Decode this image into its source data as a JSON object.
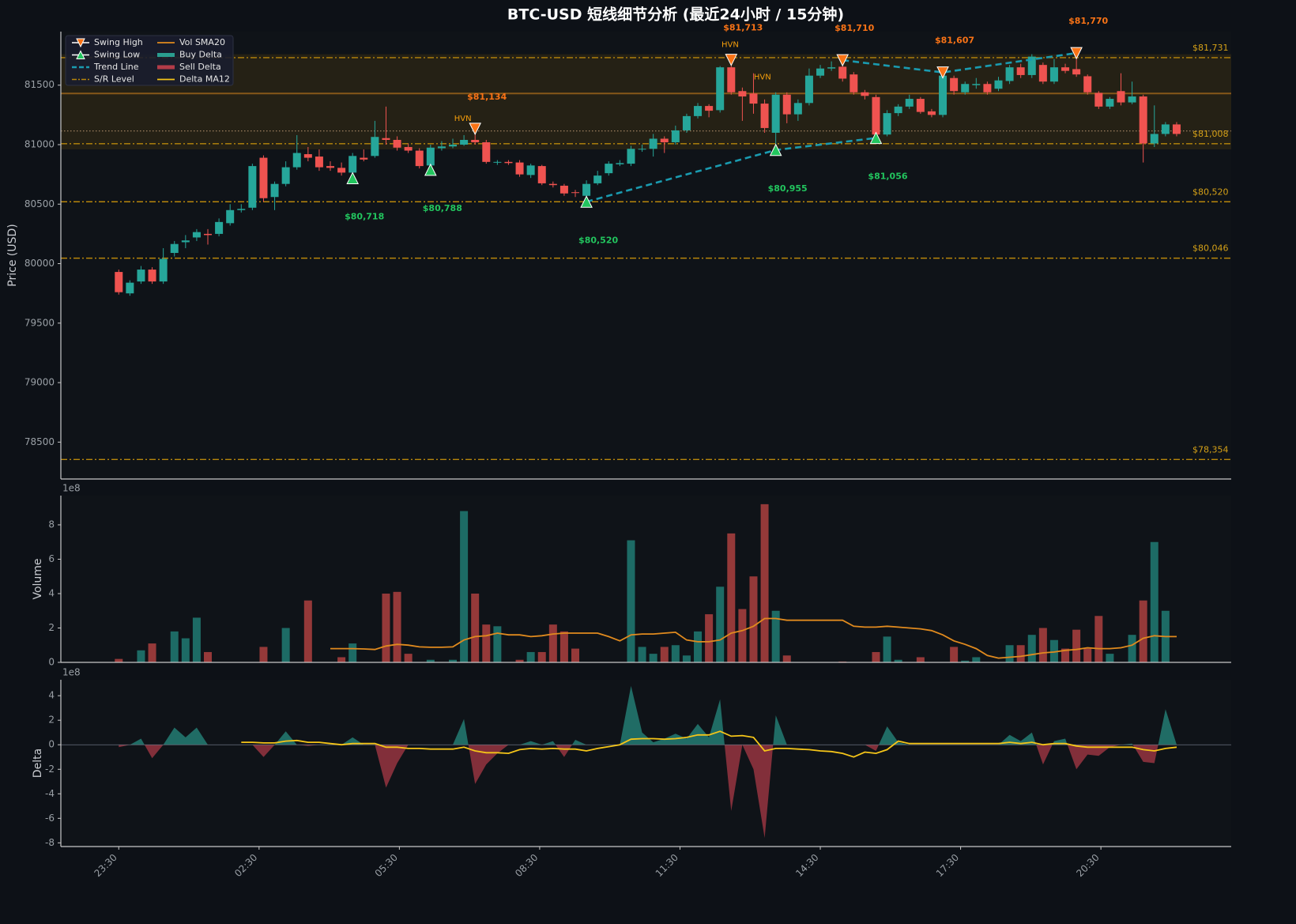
{
  "chart_data": [
    {
      "type": "candlestick",
      "title": "BTC-USD 短线细节分析 (最近24小时 / 15分钟)",
      "ylabel": "Price (USD)",
      "xlim": [
        -5.2,
        99.9
      ],
      "ylim": [
        78190,
        81950
      ],
      "yticks": [
        78500,
        79000,
        79500,
        80000,
        80500,
        81000,
        81500
      ],
      "up_color": "#26a69a",
      "down_color": "#ef5350",
      "legend": "upper left",
      "open": [
        79930,
        79750,
        79850,
        79950,
        79850,
        80090,
        80180,
        80220,
        80250,
        80250,
        80340,
        80450,
        80470,
        80890,
        80560,
        80670,
        80810,
        80920,
        80900,
        80820,
        80805,
        80765,
        80890,
        80905,
        81055,
        81040,
        80980,
        80950,
        80825,
        80970,
        80985,
        81000,
        81040,
        81020,
        80850,
        80855,
        80850,
        80745,
        80820,
        80670,
        80655,
        80600,
        80570,
        80675,
        80760,
        80835,
        80840,
        80960,
        80965,
        81050,
        81020,
        81120,
        81240,
        81325,
        81290,
        81650,
        81450,
        81430,
        81345,
        81100,
        81420,
        81255,
        81350,
        81580,
        81640,
        81655,
        81590,
        81440,
        81400,
        81085,
        81265,
        81320,
        81385,
        81280,
        81250,
        81560,
        81440,
        81500,
        81510,
        81470,
        81535,
        81650,
        81585,
        81670,
        81530,
        81650,
        81635,
        81575,
        81435,
        81320,
        81450,
        81355,
        81405,
        81010,
        81090,
        81170
      ],
      "high": [
        79950,
        79860,
        79980,
        79970,
        80130,
        80190,
        80240,
        80290,
        80290,
        80380,
        80500,
        80500,
        80840,
        80910,
        80690,
        80860,
        81080,
        80980,
        80960,
        80860,
        80850,
        80930,
        80960,
        81200,
        81320,
        81070,
        81010,
        80970,
        81000,
        81030,
        81050,
        81080,
        81134,
        81040,
        80870,
        80870,
        80870,
        80840,
        80830,
        80690,
        80670,
        80620,
        80700,
        80780,
        80860,
        80870,
        80990,
        81000,
        81090,
        81070,
        81160,
        81260,
        81350,
        81340,
        81660,
        81713,
        81480,
        81600,
        81380,
        81440,
        81440,
        81380,
        81640,
        81670,
        81700,
        81710,
        81610,
        81460,
        81420,
        81290,
        81340,
        81420,
        81400,
        81300,
        81607,
        81580,
        81530,
        81560,
        81530,
        81570,
        81670,
        81680,
        81760,
        81690,
        81720,
        81680,
        81770,
        81590,
        81450,
        81400,
        81600,
        81530,
        81420,
        81330,
        81190,
        81190
      ],
      "low": [
        79740,
        79730,
        79830,
        79830,
        79830,
        80060,
        80130,
        80190,
        80160,
        80230,
        80320,
        80430,
        80450,
        80520,
        80450,
        80650,
        80790,
        80860,
        80780,
        80780,
        80740,
        80718,
        80860,
        80890,
        81000,
        80950,
        80930,
        80800,
        80788,
        80950,
        80970,
        80990,
        81000,
        80840,
        80830,
        80830,
        80730,
        80720,
        80660,
        80640,
        80570,
        80560,
        80520,
        80660,
        80740,
        80820,
        80820,
        80940,
        80900,
        80930,
        81000,
        81100,
        81220,
        81230,
        81270,
        81420,
        81200,
        81260,
        81100,
        80955,
        81180,
        81200,
        81330,
        81560,
        81620,
        81530,
        81420,
        81380,
        81056,
        81070,
        81240,
        81300,
        81260,
        81230,
        81230,
        81420,
        81420,
        81470,
        81420,
        81450,
        81510,
        81560,
        81560,
        81510,
        81510,
        81600,
        81570,
        81420,
        81300,
        81300,
        81330,
        81340,
        80850,
        80980,
        81070,
        81070
      ],
      "close": [
        79760,
        79840,
        79950,
        79850,
        80040,
        80165,
        80195,
        80265,
        80240,
        80350,
        80450,
        80460,
        80820,
        80550,
        80670,
        80810,
        80930,
        80890,
        80810,
        80805,
        80765,
        80905,
        80875,
        81065,
        81040,
        80975,
        80950,
        80820,
        80975,
        80985,
        81000,
        81040,
        81020,
        80855,
        80855,
        80845,
        80750,
        80825,
        80675,
        80660,
        80590,
        80595,
        80670,
        80740,
        80840,
        80845,
        80965,
        80965,
        81050,
        81020,
        81120,
        81240,
        81325,
        81285,
        81650,
        81440,
        81405,
        81345,
        81140,
        81420,
        81255,
        81350,
        81580,
        81640,
        81650,
        81555,
        81440,
        81410,
        81085,
        81265,
        81320,
        81385,
        81275,
        81250,
        81580,
        81450,
        81510,
        81510,
        81440,
        81540,
        81650,
        81585,
        81740,
        81530,
        81650,
        81620,
        81590,
        81440,
        81320,
        81385,
        81355,
        81405,
        81010,
        81090,
        81170,
        81090
      ],
      "zone": {
        "range": [
          80960,
          81760
        ],
        "color": "#b8860b"
      },
      "lines": [
        {
          "value": 81430,
          "color": "#a0661a",
          "style": "solid"
        },
        {
          "value": 81115,
          "color": "#c9a27a",
          "style": "dotted"
        }
      ],
      "levels": {
        "name": "S/R Level",
        "color": "#b8860b",
        "text_color": "#d4a017",
        "values": [
          81731,
          81008,
          80520,
          80046,
          78354
        ],
        "labels": [
          "$81,731",
          "$81,008",
          "$80,520",
          "$80,046",
          "$78,354"
        ]
      },
      "trend_line": {
        "name": "Trend Line",
        "color": "#1a9bb0",
        "segments": [
          {
            "x": [
              42,
              59,
              68
            ],
            "y": [
              80520,
              80955,
              81056
            ]
          },
          {
            "x": [
              65,
              74,
              86
            ],
            "y": [
              81710,
              81607,
              81770
            ]
          }
        ]
      },
      "swing_highs": {
        "name": "Swing High",
        "color": "#f97316",
        "x": [
          32,
          55,
          65,
          74,
          86
        ],
        "values": [
          81134,
          81713,
          81710,
          81607,
          81770
        ],
        "labels": [
          "$81,134",
          "$81,713",
          "$81,710",
          "$81,607",
          "$81,770"
        ]
      },
      "swing_lows": {
        "name": "Swing Low",
        "color": "#22c55e",
        "x": [
          21,
          28,
          42,
          59,
          68
        ],
        "values": [
          80718,
          80788,
          80520,
          80955,
          81056
        ],
        "labels": [
          "$80,718",
          "$80,788",
          "$80,520",
          "$80,955",
          "$81,056"
        ]
      },
      "hvn": {
        "color": "#f59e0b",
        "points": [
          {
            "x": 30.9,
            "y": 81220,
            "label": "HVN"
          },
          {
            "x": 54.9,
            "y": 81840,
            "label": "HVN"
          },
          {
            "x": 57.8,
            "y": 81567,
            "label": "HVN"
          }
        ]
      }
    },
    {
      "type": "bar",
      "ylabel": "Volume",
      "offset_label": "1e8",
      "xlim": [
        -5.2,
        99.9
      ],
      "ylim": [
        0,
        9.7
      ],
      "yticks": [
        0,
        2,
        4,
        6,
        8
      ],
      "up_color": "#26a69a",
      "down_color": "#ef5350",
      "values": [
        0.2,
        0,
        0.7,
        1.1,
        0,
        1.8,
        1.4,
        2.6,
        0.6,
        0,
        0,
        0,
        0,
        0.9,
        0,
        2.0,
        0,
        3.6,
        0,
        0,
        0.3,
        1.1,
        0,
        0,
        4.0,
        4.1,
        0.5,
        0,
        0.15,
        0,
        0.15,
        8.8,
        4.0,
        2.2,
        2.1,
        0,
        0.15,
        0.6,
        0.6,
        2.2,
        1.8,
        0.8,
        0,
        0,
        0,
        0,
        7.1,
        0.9,
        0.5,
        0.9,
        1.0,
        0.4,
        1.8,
        2.8,
        4.4,
        7.5,
        3.1,
        5.0,
        9.2,
        3.0,
        0.4,
        0,
        0,
        0,
        0,
        0.05,
        0,
        0,
        0.6,
        1.5,
        0.15,
        0,
        0.3,
        0,
        0,
        0.9,
        0.1,
        0.3,
        0,
        0,
        1.0,
        1.0,
        1.6,
        2.0,
        1.3,
        0.8,
        1.9,
        0.8,
        2.7,
        0.5,
        0,
        1.6,
        3.6,
        7.0,
        3.0,
        0
      ],
      "sma": {
        "name": "Vol SMA20",
        "color": "#e08a1e",
        "values": [
          null,
          null,
          null,
          null,
          null,
          null,
          null,
          null,
          null,
          null,
          null,
          null,
          null,
          null,
          null,
          null,
          null,
          null,
          null,
          0.8,
          0.8,
          0.8,
          0.78,
          0.75,
          0.95,
          1.05,
          1.0,
          0.9,
          0.88,
          0.88,
          0.9,
          1.3,
          1.5,
          1.55,
          1.7,
          1.6,
          1.6,
          1.5,
          1.55,
          1.65,
          1.7,
          1.7,
          1.7,
          1.7,
          1.5,
          1.25,
          1.6,
          1.65,
          1.65,
          1.7,
          1.75,
          1.3,
          1.2,
          1.2,
          1.3,
          1.7,
          1.85,
          2.1,
          2.55,
          2.55,
          2.45,
          2.45,
          2.45,
          2.45,
          2.45,
          2.45,
          2.1,
          2.05,
          2.05,
          2.1,
          2.05,
          2.0,
          1.95,
          1.85,
          1.6,
          1.25,
          1.05,
          0.8,
          0.4,
          0.25,
          0.3,
          0.35,
          0.45,
          0.55,
          0.6,
          0.7,
          0.75,
          0.85,
          0.8,
          0.8,
          0.85,
          1.0,
          1.4,
          1.55,
          1.5,
          1.5
        ]
      }
    },
    {
      "type": "area",
      "ylabel": "Delta",
      "offset_label": "1e8",
      "xlim": [
        -5.2,
        99.9
      ],
      "ylim": [
        -8.3,
        5.3
      ],
      "yticks": [
        -8,
        -6,
        -4,
        -2,
        0,
        2,
        4
      ],
      "xticks": [
        {
          "value": 0,
          "label": "23:30"
        },
        {
          "value": 12.6,
          "label": "02:30"
        },
        {
          "value": 25.2,
          "label": "05:30"
        },
        {
          "value": 37.8,
          "label": "08:30"
        },
        {
          "value": 50.4,
          "label": "11:30"
        },
        {
          "value": 63,
          "label": "14:30"
        },
        {
          "value": 75.6,
          "label": "17:30"
        },
        {
          "value": 88.2,
          "label": "20:30"
        }
      ],
      "values": [
        -0.2,
        0,
        0.5,
        -1.1,
        0,
        1.4,
        0.6,
        1.4,
        0,
        0,
        0,
        0,
        0,
        -1.0,
        0,
        1.1,
        0,
        -0.1,
        0,
        0,
        0,
        0.6,
        0,
        0,
        -3.5,
        -1.5,
        0,
        0,
        0,
        0,
        0,
        2.1,
        -3.2,
        -1.6,
        -0.7,
        0,
        0,
        0.3,
        0,
        0.3,
        -1.0,
        0.4,
        0,
        0,
        0,
        0,
        4.8,
        1.0,
        0.2,
        0.5,
        0.9,
        0.5,
        1.7,
        0.6,
        3.7,
        -5.4,
        0,
        -2.0,
        -7.6,
        2.4,
        0,
        0,
        0,
        0,
        0,
        0,
        0,
        0,
        -0.5,
        1.5,
        0.2,
        0,
        0,
        0,
        0,
        0,
        0,
        0,
        0,
        0,
        0.8,
        0.3,
        1.0,
        -1.6,
        0.3,
        0.5,
        -2.0,
        -0.8,
        -0.9,
        -0.2,
        0,
        0.1,
        -1.4,
        -1.5,
        2.9,
        0
      ],
      "buy": {
        "name": "Buy Delta",
        "color": "#2a9d8f"
      },
      "sell": {
        "name": "Sell Delta",
        "color": "#b33c48"
      },
      "ma": {
        "name": "Delta MA12",
        "color": "#f5c518",
        "values": [
          null,
          null,
          null,
          null,
          null,
          null,
          null,
          null,
          null,
          null,
          null,
          0.2,
          0.2,
          0.15,
          0.15,
          0.3,
          0.35,
          0.2,
          0.2,
          0.1,
          0.0,
          0.1,
          0.1,
          0.1,
          -0.2,
          -0.2,
          -0.3,
          -0.3,
          -0.35,
          -0.35,
          -0.35,
          -0.2,
          -0.5,
          -0.65,
          -0.65,
          -0.7,
          -0.4,
          -0.3,
          -0.35,
          -0.3,
          -0.35,
          -0.35,
          -0.5,
          -0.3,
          -0.15,
          0.0,
          0.45,
          0.5,
          0.5,
          0.45,
          0.5,
          0.6,
          0.8,
          0.8,
          1.1,
          0.7,
          0.75,
          0.6,
          -0.5,
          -0.3,
          -0.3,
          -0.35,
          -0.4,
          -0.5,
          -0.55,
          -0.7,
          -1.0,
          -0.6,
          -0.7,
          -0.4,
          0.3,
          0.1,
          0.1,
          0.1,
          0.1,
          0.1,
          0.1,
          0.1,
          0.1,
          0.1,
          0.2,
          0.1,
          0.2,
          0.0,
          0.1,
          0.1,
          -0.1,
          -0.2,
          -0.2,
          -0.2,
          -0.2,
          -0.2,
          -0.4,
          -0.5,
          -0.3,
          -0.2
        ]
      }
    }
  ]
}
